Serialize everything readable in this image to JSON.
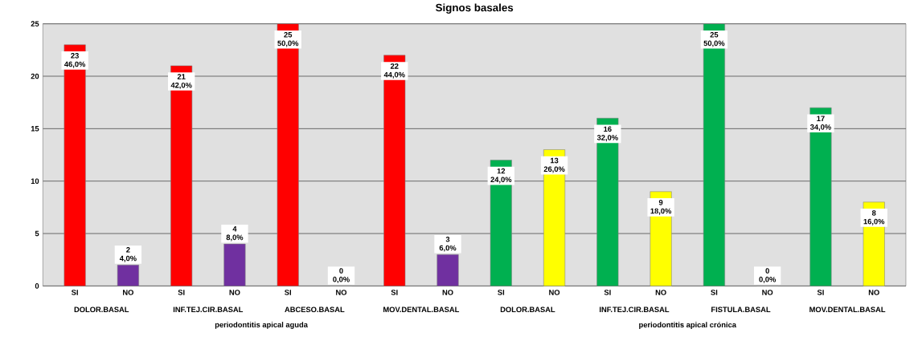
{
  "chart_data": {
    "type": "bar",
    "title": "Signos basales",
    "categories": [
      "SI",
      "NO",
      "SI",
      "NO",
      "SI",
      "NO",
      "SI",
      "NO",
      "SI",
      "NO",
      "SI",
      "NO",
      "SI",
      "NO",
      "SI",
      "NO"
    ],
    "values": [
      23,
      2,
      21,
      4,
      25,
      0,
      22,
      3,
      12,
      13,
      16,
      9,
      25,
      0,
      17,
      8
    ],
    "colors": [
      "#ff0000",
      "#7030a0",
      "#ff0000",
      "#7030a0",
      "#ff0000",
      "#7030a0",
      "#ff0000",
      "#7030a0",
      "#00b050",
      "#ffff00",
      "#00b050",
      "#ffff00",
      "#00b050",
      "#ffff00",
      "#00b050",
      "#ffff00"
    ],
    "value_labels": [
      "23 46,0%",
      "2 4,0%",
      "21 42,0%",
      "4 8,0%",
      "25 50,0%",
      "0 0,0%",
      "22 44,0%",
      "3 6,0%",
      "12 24,0%",
      "13 26,0%",
      "16 32,0%",
      "9 18,0%",
      "25 50,0%",
      "0 0,0%",
      "17 34,0%",
      "8 16,0%"
    ],
    "annotations": [
      "DOLOR.BASAL",
      "INF.TEJ.CIR.BASAL",
      "ABCESO.BASAL",
      "MOV.DENTAL.BASAL",
      "DOLOR.BASAL",
      "INF.TEJ.CIR.BASAL",
      "FISTULA.BASAL",
      "MOV.DENTAL.BASAL",
      "periodontitis apical aguda",
      "periodontitis apical crónica"
    ],
    "ylim": [
      0,
      25
    ],
    "yticks": [
      0,
      5,
      10,
      15,
      20,
      25
    ],
    "grid": "y"
  }
}
